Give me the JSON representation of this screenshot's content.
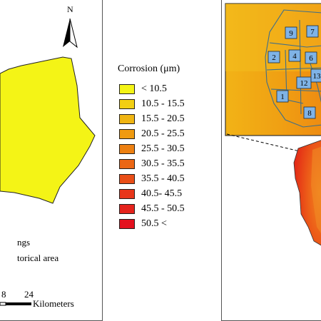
{
  "north_label": "N",
  "legend": {
    "title": "Corrosion (μm)",
    "classes": [
      {
        "label": "< 10.5",
        "color": "#f4f416"
      },
      {
        "label": "10.5 - 15.5",
        "color": "#f2cf13"
      },
      {
        "label": "15.5 - 20.5",
        "color": "#f0b512"
      },
      {
        "label": "20.5 - 25.5",
        "color": "#ef9a10"
      },
      {
        "label": "25.5 - 30.5",
        "color": "#ed8011"
      },
      {
        "label": "30.5 - 35.5",
        "color": "#eb6614"
      },
      {
        "label": "35.5 - 40.5",
        "color": "#e94e17"
      },
      {
        "label": "40.5- 45.5",
        "color": "#e7361a"
      },
      {
        "label": "45.5 - 50.5",
        "color": "#e5231c"
      },
      {
        "label": "50.5 <",
        "color": "#e3111e"
      }
    ]
  },
  "left_legend": {
    "item1": "ngs",
    "item2": "torical area"
  },
  "scale_bar": {
    "tick_8": "8",
    "tick_24": "24",
    "unit": "Kilometers"
  },
  "districts": [
    "1",
    "2",
    "4",
    "6",
    "7",
    "8",
    "9",
    "12",
    "13"
  ]
}
